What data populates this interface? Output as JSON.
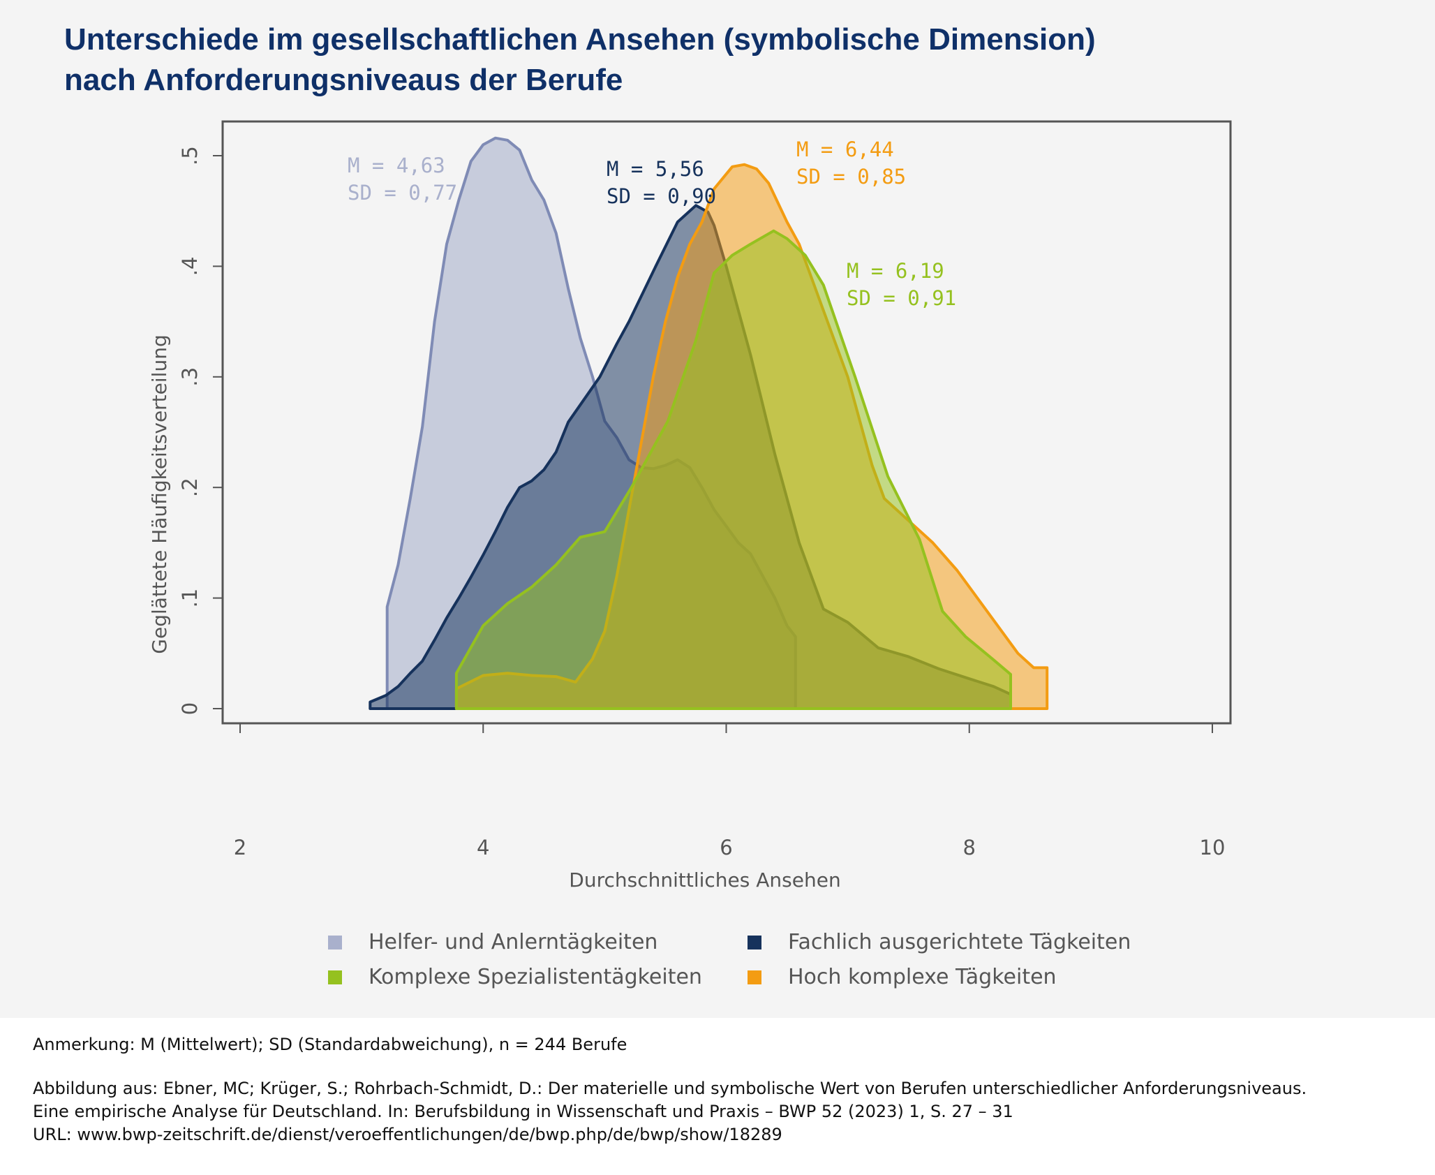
{
  "title": {
    "line1": "Unterschiede im gesellschaftlichen Ansehen (symbolische Dimension)",
    "line2": "nach Anforderungsniveaus der Berufe"
  },
  "chart_data": {
    "type": "area",
    "xlabel": "Durchschnittliches Ansehen",
    "ylabel": "Geglättete Häufigkeitsverteilung",
    "xlim": [
      2,
      10
    ],
    "ylim": [
      0,
      0.5
    ],
    "xticks": [
      "2",
      "4",
      "6",
      "8",
      "10"
    ],
    "xtick_values": [
      2,
      4,
      6,
      8,
      10
    ],
    "yticks": [
      "0",
      ".1",
      ".2",
      ".3",
      ".4",
      ".5"
    ],
    "ytick_values": [
      0,
      0.1,
      0.2,
      0.3,
      0.4,
      0.5
    ],
    "grid": false,
    "legend_placement": "bottom",
    "series": [
      {
        "name": "Helfer- und Anlerntägkeiten",
        "color": "#a9b0cc",
        "stroke": "#7f8bb5",
        "annotation": [
          "M = 4,63",
          "SD = 0,77"
        ],
        "x": [
          3.21,
          3.21,
          3.3,
          3.4,
          3.5,
          3.6,
          3.7,
          3.8,
          3.9,
          4.0,
          4.1,
          4.2,
          4.3,
          4.4,
          4.5,
          4.6,
          4.7,
          4.8,
          4.9,
          5.0,
          5.1,
          5.2,
          5.3,
          5.4,
          5.5,
          5.6,
          5.7,
          5.8,
          5.9,
          6.0,
          6.1,
          6.2,
          6.3,
          6.4,
          6.5,
          6.57,
          6.57
        ],
        "y": [
          0,
          0.092,
          0.13,
          0.19,
          0.255,
          0.35,
          0.42,
          0.46,
          0.495,
          0.51,
          0.516,
          0.514,
          0.505,
          0.478,
          0.46,
          0.43,
          0.38,
          0.335,
          0.3,
          0.26,
          0.245,
          0.225,
          0.218,
          0.217,
          0.22,
          0.225,
          0.218,
          0.2,
          0.18,
          0.165,
          0.15,
          0.14,
          0.12,
          0.1,
          0.075,
          0.065,
          0
        ]
      },
      {
        "name": "Fachlich ausgerichtete Tägkeiten",
        "color": "#16325c",
        "stroke": "#16325c",
        "annotation": [
          "M = 5,56",
          "SD = 0,90"
        ],
        "x": [
          3.07,
          3.07,
          3.2,
          3.3,
          3.4,
          3.5,
          3.6,
          3.7,
          3.8,
          3.9,
          4.0,
          4.1,
          4.2,
          4.3,
          4.4,
          4.5,
          4.6,
          4.7,
          4.96,
          5.1,
          5.2,
          5.42,
          5.6,
          5.75,
          5.85,
          5.9,
          6.0,
          6.2,
          6.4,
          6.6,
          6.8,
          7.0,
          7.25,
          7.5,
          7.75,
          8.0,
          8.2,
          8.34,
          8.34
        ],
        "y": [
          0,
          0.006,
          0.012,
          0.02,
          0.032,
          0.043,
          0.062,
          0.082,
          0.1,
          0.119,
          0.139,
          0.16,
          0.182,
          0.2,
          0.206,
          0.216,
          0.232,
          0.259,
          0.3,
          0.33,
          0.35,
          0.4,
          0.44,
          0.455,
          0.449,
          0.437,
          0.4,
          0.32,
          0.23,
          0.15,
          0.09,
          0.078,
          0.055,
          0.047,
          0.036,
          0.027,
          0.02,
          0.013,
          0
        ]
      },
      {
        "name": "Hoch komplexe Tägkeiten",
        "color": "#f39c12",
        "stroke": "#f39c12",
        "annotation": [
          "M = 6,44",
          "SD = 0,85"
        ],
        "x": [
          3.78,
          3.78,
          4.0,
          4.2,
          4.4,
          4.6,
          4.76,
          4.9,
          5.0,
          5.1,
          5.2,
          5.3,
          5.4,
          5.5,
          5.6,
          5.7,
          5.8,
          5.9,
          6.05,
          6.15,
          6.25,
          6.35,
          6.5,
          6.6,
          6.7,
          6.8,
          6.9,
          7.0,
          7.1,
          7.2,
          7.3,
          7.5,
          7.7,
          7.9,
          8.0,
          8.2,
          8.4,
          8.53,
          8.64,
          8.64
        ],
        "y": [
          0,
          0.018,
          0.03,
          0.032,
          0.03,
          0.029,
          0.024,
          0.045,
          0.07,
          0.12,
          0.18,
          0.24,
          0.3,
          0.35,
          0.39,
          0.42,
          0.44,
          0.47,
          0.49,
          0.492,
          0.488,
          0.475,
          0.44,
          0.42,
          0.39,
          0.36,
          0.33,
          0.3,
          0.26,
          0.22,
          0.19,
          0.17,
          0.15,
          0.125,
          0.11,
          0.08,
          0.05,
          0.037,
          0.037,
          0
        ]
      },
      {
        "name": "Komplexe Spezialistentägkeiten",
        "color": "#95c11f",
        "stroke": "#95c11f",
        "annotation": [
          "M = 6,19",
          "SD = 0,91"
        ],
        "x": [
          3.78,
          3.78,
          4.0,
          4.2,
          4.4,
          4.6,
          4.8,
          5.0,
          5.22,
          5.52,
          5.75,
          5.9,
          6.05,
          6.2,
          6.39,
          6.5,
          6.65,
          6.8,
          7.06,
          7.33,
          7.59,
          7.78,
          7.97,
          8.19,
          8.34,
          8.34
        ],
        "y": [
          0,
          0.032,
          0.075,
          0.095,
          0.11,
          0.13,
          0.155,
          0.16,
          0.2,
          0.26,
          0.333,
          0.394,
          0.41,
          0.42,
          0.432,
          0.425,
          0.41,
          0.383,
          0.3,
          0.21,
          0.153,
          0.088,
          0.065,
          0.045,
          0.031,
          0
        ]
      }
    ]
  },
  "legend": [
    {
      "label": "Helfer- und Anlerntägkeiten",
      "color": "#a9b0cc"
    },
    {
      "label": "Fachlich ausgerichtete Tägkeiten",
      "color": "#16325c"
    },
    {
      "label": "Komplexe Spezialistentägkeiten",
      "color": "#95c11f"
    },
    {
      "label": "Hoch komplexe Tägkeiten",
      "color": "#f39c12"
    }
  ],
  "footnote": {
    "note": "Anmerkung: M (Mittelwert); SD (Standardabweichung), n = 244 Berufe",
    "source1": "Abbildung aus: Ebner, MC; Krüger, S.; Rohrbach-Schmidt, D.: Der materielle und symbolische Wert von Berufen unterschiedlicher Anforderungsniveaus.",
    "source2": "Eine empirische Analyse für Deutschland. In: Berufsbildung in Wissenschaft und Praxis – BWP 52 (2023) 1, S. 27 – 31",
    "source3": "URL: www.bwp-zeitschrift.de/dienst/veroeffentlichungen/de/bwp.php/de/bwp/show/18289"
  }
}
